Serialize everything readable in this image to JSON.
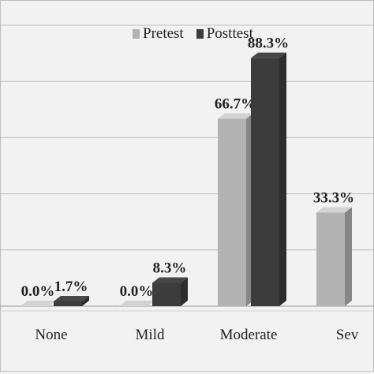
{
  "chart_data": {
    "type": "bar",
    "categories": [
      "None",
      "Mild",
      "Moderate",
      "Severe"
    ],
    "category_labels_visible": [
      "None",
      "Mild",
      "Moderate",
      "Sev"
    ],
    "series": [
      {
        "name": "Pretest",
        "values": [
          0.0,
          0.0,
          66.7,
          33.3
        ],
        "labels": [
          "0.0%",
          "0.0%",
          "66.7%",
          "33.3%"
        ],
        "color": "#b3b3b3"
      },
      {
        "name": "Posttest",
        "values": [
          1.7,
          8.3,
          88.3,
          null
        ],
        "labels": [
          "1.7%",
          "8.3%",
          "88.3%",
          ""
        ],
        "color": "#3c3c3c"
      }
    ],
    "ylim": [
      0,
      100
    ],
    "grid": true,
    "legend": "top-center",
    "title": "",
    "xlabel": "",
    "ylabel": ""
  },
  "colors": {
    "background": "#f2f2f2",
    "gridline": "#bdbdbd",
    "pretest": "#b3b3b3",
    "posttest": "#3c3c3c",
    "text": "#222222"
  }
}
